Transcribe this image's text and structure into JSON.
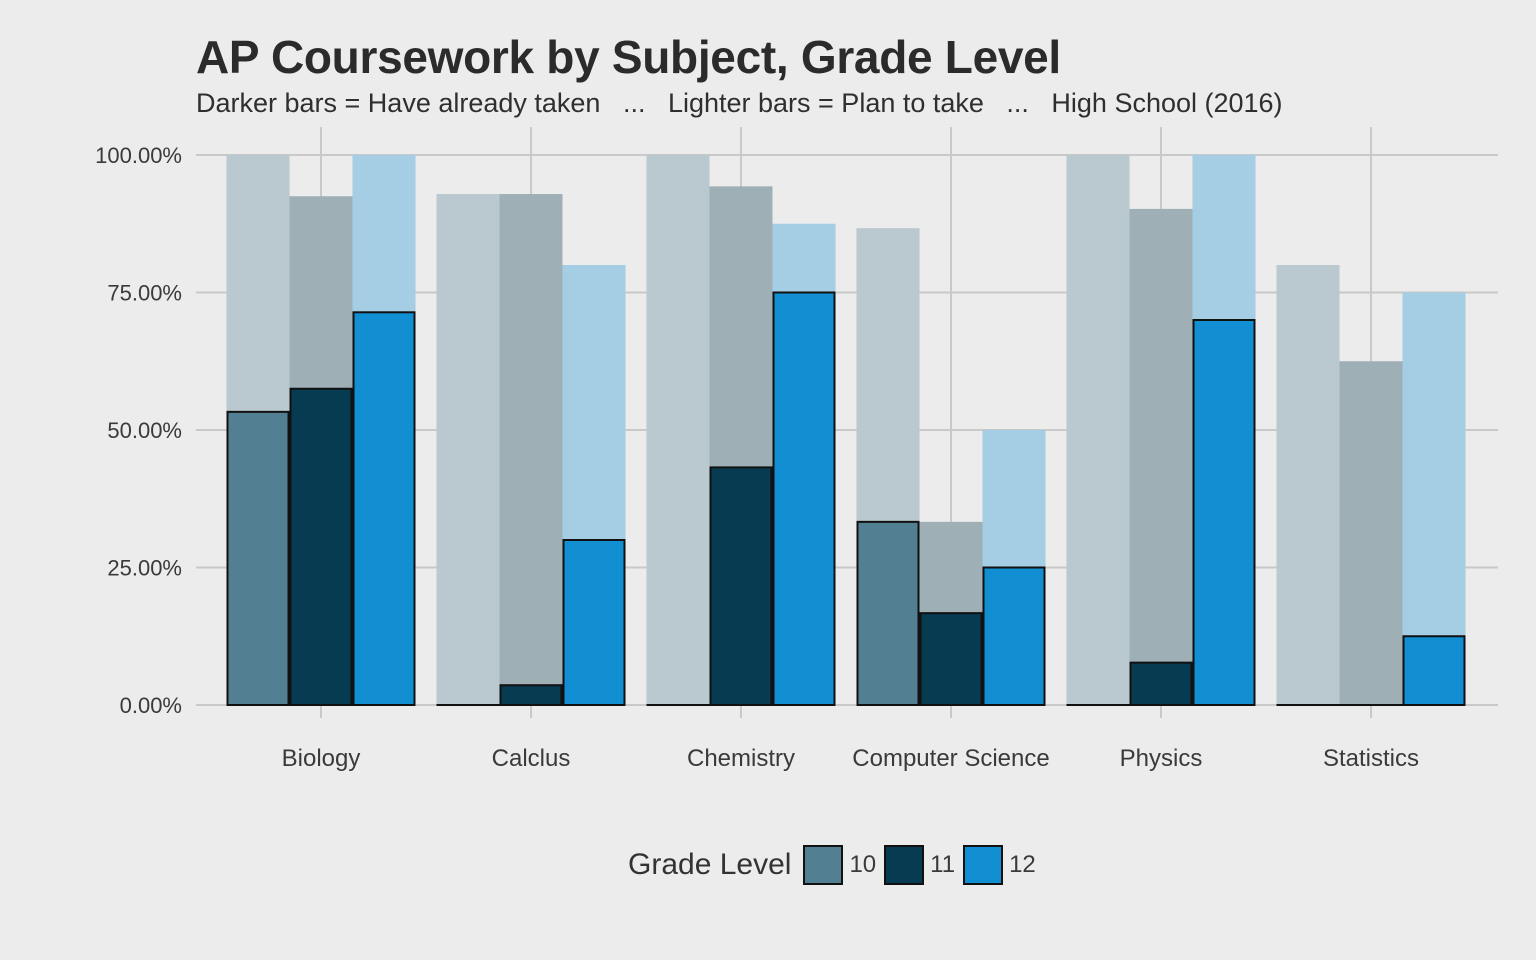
{
  "chart_data": {
    "type": "bar",
    "title": "AP Coursework by Subject, Grade Level",
    "subtitle": "Darker bars = Have already taken   ...   Lighter bars = Plan to take   ...   High School (2016)",
    "categories": [
      "Biology",
      "Calclus",
      "Chemistry",
      "Computer Science",
      "Physics",
      "Statistics"
    ],
    "legend_title": "Grade Level",
    "legend_position": "bottom",
    "grid": true,
    "ylim": [
      0,
      1
    ],
    "y_ticks": [
      0,
      0.25,
      0.5,
      0.75,
      1.0
    ],
    "y_tick_labels": [
      "0.00%",
      "25.00%",
      "50.00%",
      "75.00%",
      "100.00%"
    ],
    "series": [
      {
        "name": "10",
        "color": "#537f93",
        "plan_color": "#bac9d0",
        "taken": [
          0.533,
          0.0,
          0.0,
          0.333,
          0.0,
          0.0
        ],
        "plan": [
          1.0,
          0.929,
          1.0,
          0.867,
          1.0,
          0.8
        ]
      },
      {
        "name": "11",
        "color": "#073b51",
        "plan_color": "#9eafb6",
        "taken": [
          0.575,
          0.036,
          0.432,
          0.167,
          0.077,
          0.0
        ],
        "plan": [
          0.925,
          0.929,
          0.943,
          0.333,
          0.902,
          0.625
        ]
      },
      {
        "name": "12",
        "color": "#128ed2",
        "plan_color": "#a5cde3",
        "taken": [
          0.714,
          0.3,
          0.75,
          0.25,
          0.7,
          0.125
        ],
        "plan": [
          1.0,
          0.8,
          0.875,
          0.5,
          1.0,
          0.75
        ]
      }
    ]
  }
}
